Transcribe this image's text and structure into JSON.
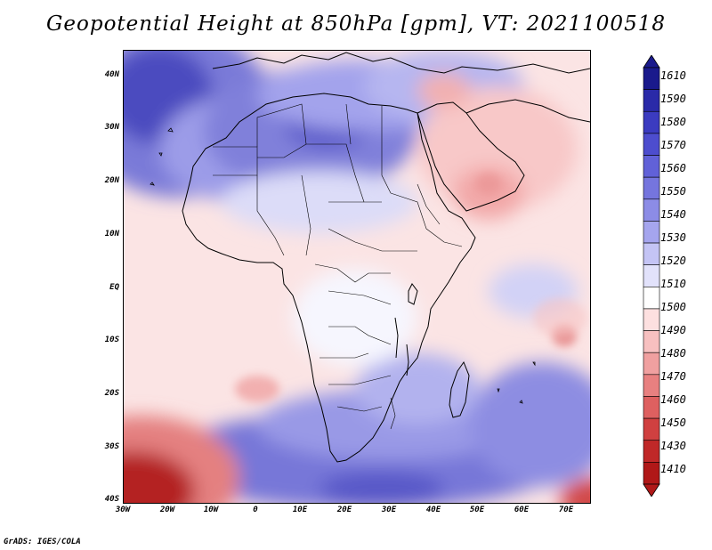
{
  "title": "Geopotential Height at 850hPa [gpm], VT: 2021100518",
  "footer": "GrADS: IGES/COLA",
  "lat_labels": [
    "40N",
    "30N",
    "20N",
    "10N",
    "EQ",
    "10S",
    "20S",
    "30S",
    "40S"
  ],
  "lon_labels": [
    "30W",
    "20W",
    "10W",
    "0",
    "10E",
    "20E",
    "30E",
    "40E",
    "50E",
    "60E",
    "70E"
  ],
  "colorbar": {
    "levels": [
      "1610",
      "1590",
      "1580",
      "1570",
      "1560",
      "1550",
      "1540",
      "1530",
      "1520",
      "1510",
      "1500",
      "1490",
      "1480",
      "1470",
      "1460",
      "1450",
      "1430",
      "1410"
    ],
    "colors": [
      "#1a1a8c",
      "#2a2aa8",
      "#3b3bc0",
      "#4d4dce",
      "#6161d8",
      "#7575de",
      "#8c8ce6",
      "#a5a5ee",
      "#c4c4f5",
      "#e2e2fb",
      "#ffffff",
      "#fde0e0",
      "#f7c0c0",
      "#f0a0a0",
      "#e88080",
      "#de6060",
      "#d04040",
      "#c02828",
      "#b01818"
    ]
  },
  "colors": {
    "ocean_base": "#fde2e2",
    "land_base": "#ffffff",
    "coast": "#000000"
  }
}
